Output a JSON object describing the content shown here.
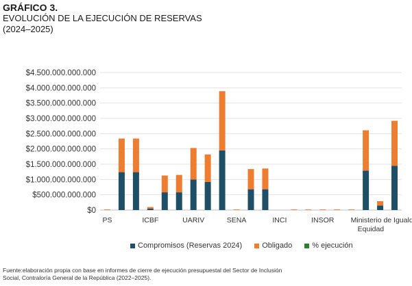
{
  "header": {
    "label": "GRÁFICO 3.",
    "title": "EVOLUCIÓN DE LA EJECUCIÓN DE RESERVAS",
    "subtitle": "(2024–2025)"
  },
  "source": {
    "line1": "Fuente:elaboración propia con base en informes de cierre de ejecución presupuestal del Sector de Inclusión",
    "line2": "Social, Contraloría General de la República (2022–2025)."
  },
  "chart_data": {
    "type": "bar",
    "stacked": true,
    "ylim": [
      0,
      4500000000000
    ],
    "yticks": [
      {
        "value": 0,
        "label": "$0"
      },
      {
        "value": 500000000000,
        "label": "$500.000.000.000"
      },
      {
        "value": 1000000000000,
        "label": "$1.000.000.000.000"
      },
      {
        "value": 1500000000000,
        "label": "$1.500.000.000.000"
      },
      {
        "value": 2000000000000,
        "label": "$2.000.000.000.000"
      },
      {
        "value": 2500000000000,
        "label": "$2.500.000.000.000"
      },
      {
        "value": 3000000000000,
        "label": "$3.000.000.000.000"
      },
      {
        "value": 3500000000000,
        "label": "$3.500.000.000.000"
      },
      {
        "value": 4000000000000,
        "label": "$4.000.000.000.000"
      },
      {
        "value": 4500000000000,
        "label": "$4.500.000.000.000"
      }
    ],
    "grid": true,
    "legend_position": "bottom",
    "category_labels": [
      "PS",
      "ICBF",
      "UARIV",
      "SENA",
      "INCI",
      "INSOR",
      "Ministerio de Igualdad y Equidad"
    ],
    "bar_count": 21,
    "series": [
      {
        "name": "Compromisos (Reservas 2024)",
        "color": "#1f4e67",
        "values": [
          0,
          1240000000000,
          1240000000000,
          50000000000,
          580000000000,
          580000000000,
          1000000000000,
          920000000000,
          1950000000000,
          0,
          680000000000,
          680000000000,
          0,
          0,
          0,
          0,
          0,
          0,
          1290000000000,
          150000000000,
          1450000000000
        ]
      },
      {
        "name": "Obligado",
        "color": "#ed7d31",
        "values": [
          20000000000,
          1100000000000,
          1100000000000,
          50000000000,
          550000000000,
          570000000000,
          1030000000000,
          900000000000,
          1940000000000,
          20000000000,
          660000000000,
          680000000000,
          0,
          20000000000,
          20000000000,
          20000000000,
          20000000000,
          20000000000,
          1320000000000,
          140000000000,
          1470000000000
        ]
      },
      {
        "name": "% ejecución",
        "color": "#2e7d32",
        "values": [
          0,
          0,
          0,
          0,
          0,
          0,
          0,
          0,
          0,
          0,
          0,
          0,
          0,
          0,
          0,
          0,
          0,
          0,
          0,
          0,
          0
        ]
      }
    ]
  }
}
